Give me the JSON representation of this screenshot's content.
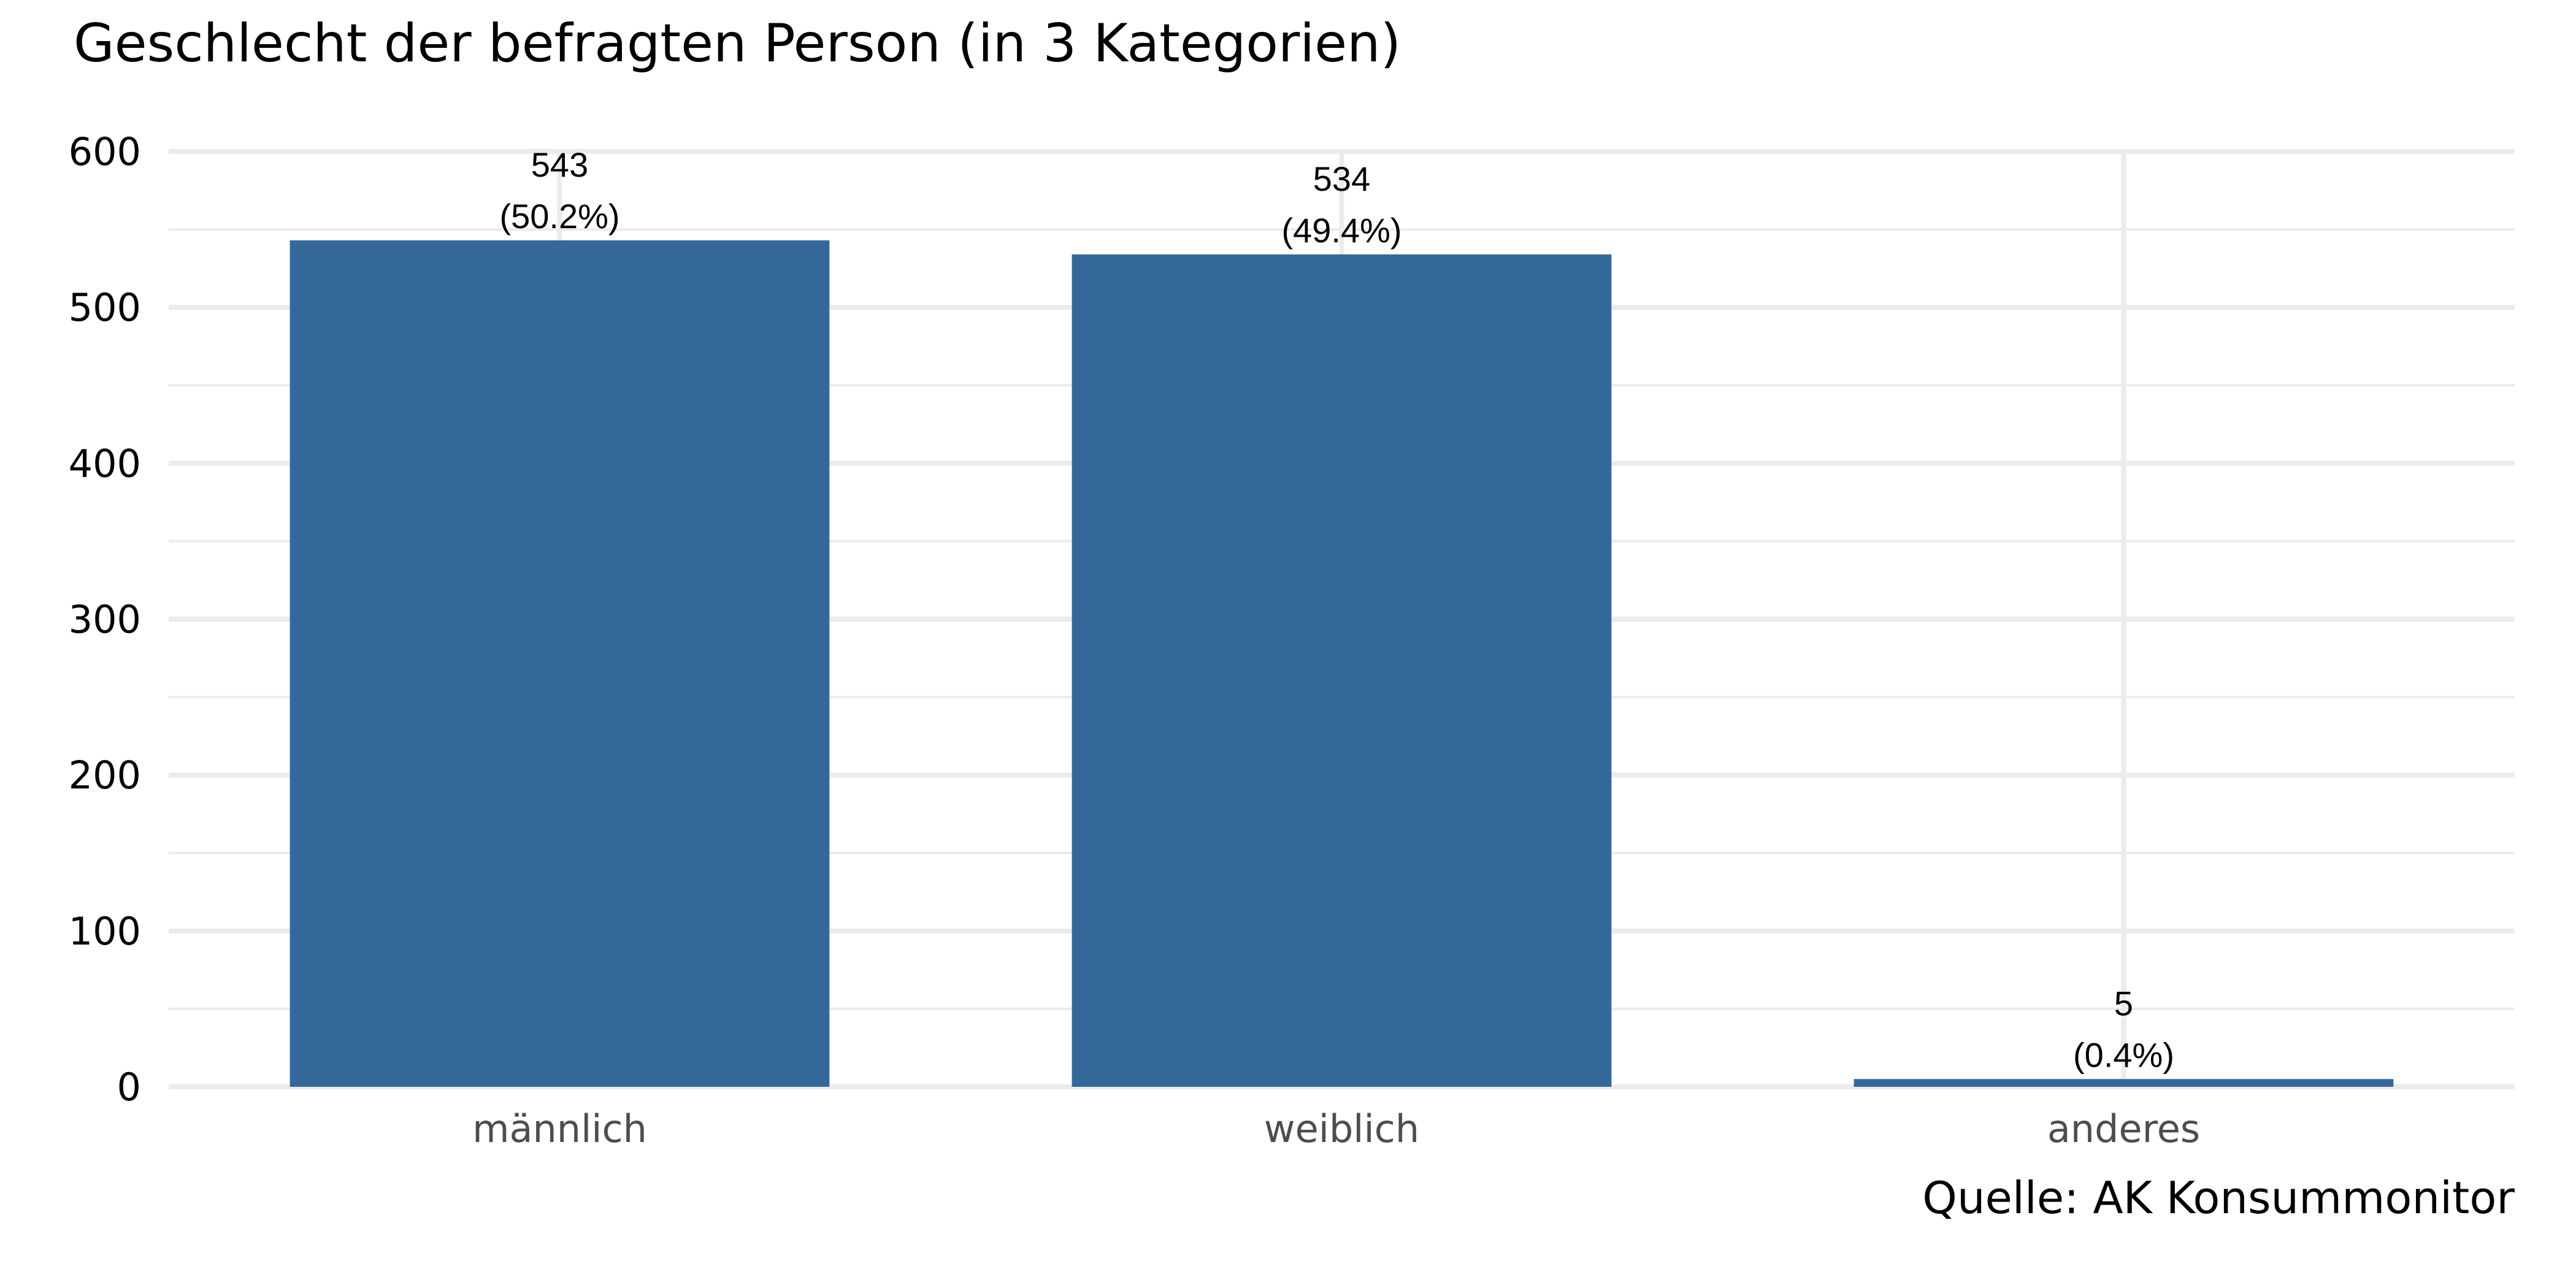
{
  "chart_data": {
    "type": "bar",
    "title": "Geschlecht der befragten Person (in 3 Kategorien)",
    "caption": "Quelle: AK Konsummonitor",
    "xlabel": "",
    "ylabel": "",
    "categories": [
      "männlich",
      "weiblich",
      "anderes"
    ],
    "values": [
      543,
      534,
      5
    ],
    "value_labels": [
      "543",
      "534",
      "5"
    ],
    "percent_labels": [
      "(50.2%)",
      "(49.4%)",
      "(0.4%)"
    ],
    "ylim": [
      0,
      600
    ],
    "yticks": [
      0,
      100,
      200,
      300,
      400,
      500,
      600
    ],
    "grid": true,
    "legend": "none",
    "bar_color": "#35689a",
    "grid_color": "#ebebeb"
  }
}
